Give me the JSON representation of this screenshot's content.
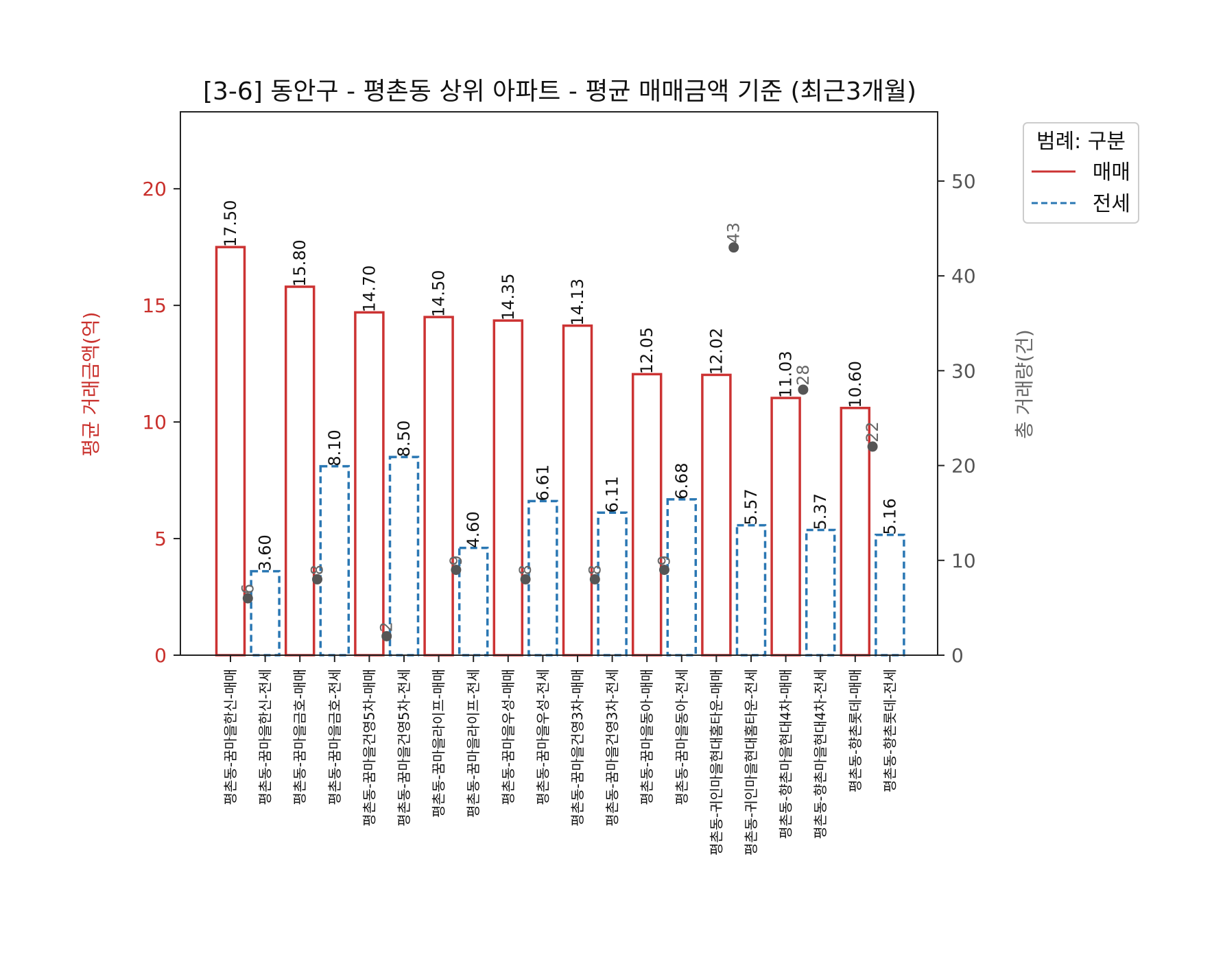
{
  "colors": {
    "sale": "#cc3333",
    "jeonse": "#2a77b3",
    "count_marker": "#555555",
    "axis": "#222222"
  },
  "chart_data": {
    "type": "bar",
    "title": "[3-6] 동안구 - 평촌동 상위 아파트 - 평균 매매금액 기준 (최근3개월)",
    "ylabel": "평균 거래금액(억)",
    "ylabel_right": "총 거래량(건)",
    "ylim": [
      0,
      23.3
    ],
    "ylim_right": [
      0,
      57.3
    ],
    "yticks": [
      0,
      5,
      10,
      15,
      20
    ],
    "yticks_right": [
      0,
      10,
      20,
      30,
      40,
      50
    ],
    "legend": {
      "title": "범례: 구분",
      "placement": "outside-top-right",
      "entries": [
        {
          "label": "매매",
          "color": "#cc3333",
          "dashed": false
        },
        {
          "label": "전세",
          "color": "#2a77b3",
          "dashed": true
        }
      ]
    },
    "categories": [
      "평촌동-꿈마을한신-매매",
      "평촌동-꿈마을한신-전세",
      "평촌동-꿈마을금호-매매",
      "평촌동-꿈마을금호-전세",
      "평촌동-꿈마을건영5차-매매",
      "평촌동-꿈마을건영5차-전세",
      "평촌동-꿈마을라이프-매매",
      "평촌동-꿈마을라이프-전세",
      "평촌동-꿈마을우성-매매",
      "평촌동-꿈마을우성-전세",
      "평촌동-꿈마을건영3차-매매",
      "평촌동-꿈마을건영3차-전세",
      "평촌동-꿈마을동아-매매",
      "평촌동-꿈마을동아-전세",
      "평촌동-귀인마을현대홈타운-매매",
      "평촌동-귀인마을현대홈타운-전세",
      "평촌동-향촌마을현대4차-매매",
      "평촌동-향촌마을현대4차-전세",
      "평촌동-향촌롯데-매매",
      "평촌동-향촌롯데-전세"
    ],
    "series": [
      {
        "name": "매매",
        "kind": "bar",
        "values": [
          17.5,
          null,
          15.8,
          null,
          14.7,
          null,
          14.5,
          null,
          14.35,
          null,
          14.13,
          null,
          12.05,
          null,
          12.02,
          null,
          11.03,
          null,
          10.6,
          null
        ]
      },
      {
        "name": "전세",
        "kind": "bar",
        "values": [
          null,
          3.6,
          null,
          8.1,
          null,
          8.5,
          null,
          4.6,
          null,
          6.61,
          null,
          6.11,
          null,
          6.68,
          null,
          5.57,
          null,
          5.37,
          null,
          5.16
        ]
      }
    ],
    "bar_labels": [
      "17.50",
      "3.60",
      "15.80",
      "8.10",
      "14.70",
      "8.50",
      "14.50",
      "4.60",
      "14.35",
      "6.61",
      "14.13",
      "6.11",
      "12.05",
      "6.68",
      "12.02",
      "5.57",
      "11.03",
      "5.37",
      "10.60",
      "5.16"
    ],
    "total_counts": [
      {
        "complex": "평촌동-꿈마을한신",
        "count": 6,
        "label": "6"
      },
      {
        "complex": "평촌동-꿈마을금호",
        "count": 8,
        "label": "8"
      },
      {
        "complex": "평촌동-꿈마을건영5차",
        "count": 2,
        "label": "2"
      },
      {
        "complex": "평촌동-꿈마을라이프",
        "count": 9,
        "label": "9"
      },
      {
        "complex": "평촌동-꿈마을우성",
        "count": 8,
        "label": "8"
      },
      {
        "complex": "평촌동-꿈마을건영3차",
        "count": 8,
        "label": "8"
      },
      {
        "complex": "평촌동-꿈마을동아",
        "count": 9,
        "label": "9"
      },
      {
        "complex": "평촌동-귀인마을현대홈타운",
        "count": 43,
        "label": "43"
      },
      {
        "complex": "평촌동-향촌마을현대4차",
        "count": 28,
        "label": "28"
      },
      {
        "complex": "평촌동-향촌롯데",
        "count": 22,
        "label": "22"
      }
    ]
  }
}
